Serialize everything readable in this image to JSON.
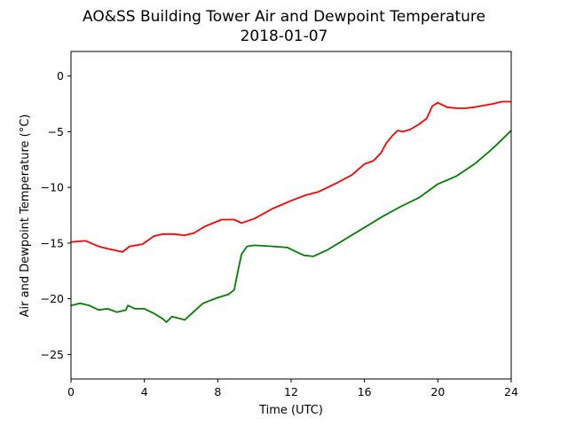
{
  "chart_data": {
    "type": "line",
    "title": "AO&SS Building Tower Air and Dewpoint Temperature",
    "subtitle": "2018-01-07",
    "xlabel": "Time (UTC)",
    "ylabel": "Air and Dewpoint Temperature (°C)",
    "xlim": [
      0,
      24
    ],
    "ylim": [
      -27.2,
      2.2
    ],
    "x_ticks": [
      0,
      4,
      8,
      12,
      16,
      20,
      24
    ],
    "y_ticks": [
      0,
      -5,
      -10,
      -15,
      -20,
      -25
    ],
    "grid": false,
    "legend": "none",
    "series": [
      {
        "color": "#ff0000",
        "points": [
          [
            0.0,
            -14.9
          ],
          [
            0.8,
            -14.8
          ],
          [
            1.5,
            -15.3
          ],
          [
            2.0,
            -15.5
          ],
          [
            2.8,
            -15.8
          ],
          [
            3.2,
            -15.3
          ],
          [
            3.9,
            -15.1
          ],
          [
            4.5,
            -14.4
          ],
          [
            5.0,
            -14.2
          ],
          [
            5.6,
            -14.2
          ],
          [
            6.2,
            -14.3
          ],
          [
            6.7,
            -14.1
          ],
          [
            7.3,
            -13.5
          ],
          [
            8.2,
            -12.9
          ],
          [
            8.9,
            -12.9
          ],
          [
            9.3,
            -13.2
          ],
          [
            10.0,
            -12.8
          ],
          [
            11.0,
            -11.9
          ],
          [
            12.0,
            -11.2
          ],
          [
            12.8,
            -10.7
          ],
          [
            13.5,
            -10.4
          ],
          [
            14.5,
            -9.6
          ],
          [
            15.3,
            -8.9
          ],
          [
            16.0,
            -7.9
          ],
          [
            16.5,
            -7.6
          ],
          [
            16.9,
            -6.9
          ],
          [
            17.2,
            -6.0
          ],
          [
            17.5,
            -5.4
          ],
          [
            17.8,
            -4.9
          ],
          [
            18.1,
            -5.0
          ],
          [
            18.5,
            -4.8
          ],
          [
            19.0,
            -4.3
          ],
          [
            19.4,
            -3.8
          ],
          [
            19.7,
            -2.7
          ],
          [
            20.0,
            -2.4
          ],
          [
            20.5,
            -2.8
          ],
          [
            21.0,
            -2.9
          ],
          [
            21.5,
            -2.9
          ],
          [
            22.0,
            -2.8
          ],
          [
            23.0,
            -2.5
          ],
          [
            23.5,
            -2.3
          ],
          [
            24.0,
            -2.3
          ]
        ]
      },
      {
        "color": "#008000",
        "points": [
          [
            0.0,
            -20.6
          ],
          [
            0.5,
            -20.4
          ],
          [
            1.0,
            -20.6
          ],
          [
            1.5,
            -21.0
          ],
          [
            2.0,
            -20.9
          ],
          [
            2.5,
            -21.2
          ],
          [
            3.0,
            -21.0
          ],
          [
            3.1,
            -20.6
          ],
          [
            3.5,
            -20.9
          ],
          [
            4.0,
            -20.9
          ],
          [
            4.5,
            -21.3
          ],
          [
            5.0,
            -21.8
          ],
          [
            5.2,
            -22.1
          ],
          [
            5.5,
            -21.6
          ],
          [
            6.0,
            -21.8
          ],
          [
            6.2,
            -21.9
          ],
          [
            6.6,
            -21.3
          ],
          [
            7.2,
            -20.4
          ],
          [
            8.0,
            -19.9
          ],
          [
            8.6,
            -19.6
          ],
          [
            8.9,
            -19.2
          ],
          [
            9.1,
            -17.5
          ],
          [
            9.3,
            -16.0
          ],
          [
            9.6,
            -15.3
          ],
          [
            10.0,
            -15.2
          ],
          [
            11.0,
            -15.3
          ],
          [
            11.8,
            -15.4
          ],
          [
            12.3,
            -15.8
          ],
          [
            12.7,
            -16.1
          ],
          [
            13.2,
            -16.2
          ],
          [
            14.0,
            -15.6
          ],
          [
            15.0,
            -14.6
          ],
          [
            16.0,
            -13.6
          ],
          [
            17.0,
            -12.6
          ],
          [
            18.0,
            -11.7
          ],
          [
            19.0,
            -10.9
          ],
          [
            19.5,
            -10.3
          ],
          [
            20.0,
            -9.7
          ],
          [
            21.0,
            -9.0
          ],
          [
            22.0,
            -7.9
          ],
          [
            23.0,
            -6.5
          ],
          [
            24.0,
            -4.9
          ]
        ]
      }
    ]
  }
}
